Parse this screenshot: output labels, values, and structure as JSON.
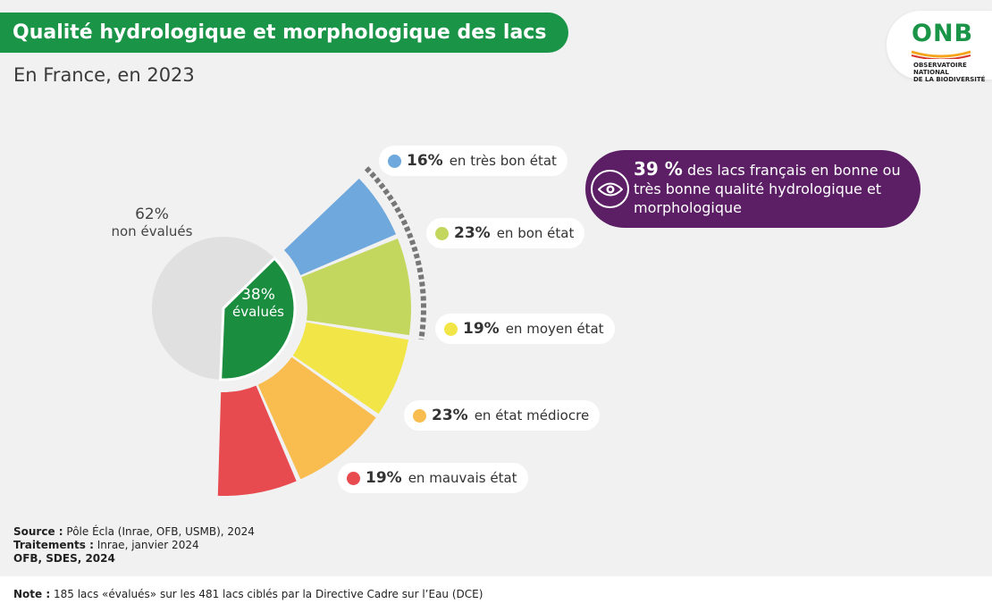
{
  "header": {
    "title": "Qualité hydrologique et morphologique des lacs",
    "subtitle": "En France, en 2023"
  },
  "logo": {
    "word": "ONB",
    "line1": "OBSERVATOIRE NATIONAL",
    "line2": "DE LA BIODIVERSITÉ"
  },
  "chart_data": {
    "type": "pie",
    "outer": {
      "slices": [
        {
          "label": "non évalués",
          "value": 62,
          "pct_text": "62%",
          "color": "#e0e0e0"
        },
        {
          "label": "évalués",
          "value": 38,
          "pct_text": "38%",
          "color": "#1a8d3f"
        }
      ]
    },
    "breakdown": {
      "of": "évalués",
      "slices": [
        {
          "label": "en très bon état",
          "value": 16,
          "pct_text": "16%",
          "color": "#6fa8dc"
        },
        {
          "label": "en bon état",
          "value": 23,
          "pct_text": "23%",
          "color": "#c3d75f"
        },
        {
          "label": "en moyen état",
          "value": 19,
          "pct_text": "19%",
          "color": "#f1e547"
        },
        {
          "label": "en état médiocre",
          "value": 23,
          "pct_text": "23%",
          "color": "#f9bd4f"
        },
        {
          "label": "en mauvais état",
          "value": 19,
          "pct_text": "19%",
          "color": "#e84b4f"
        }
      ],
      "highlight": {
        "slices": [
          "en très bon état",
          "en bon état"
        ],
        "style": "dashed-arc"
      }
    }
  },
  "callout": {
    "value": "39 %",
    "text": "des lacs français en bonne ou très bonne qualité hydrologique et morphologique",
    "icon": "eye-icon"
  },
  "source": {
    "source_label": "Source :",
    "source_text": "Pôle Écla (Inrae, OFB, USMB), 2024",
    "treat_label": "Traitements :",
    "treat_text": "Inrae, janvier 2024",
    "credit": "OFB, SDES, 2024"
  },
  "note": {
    "label": "Note :",
    "text": "185 lacs «évalués» sur les 481 lacs ciblés par la Directive Cadre sur l’Eau (DCE)"
  }
}
